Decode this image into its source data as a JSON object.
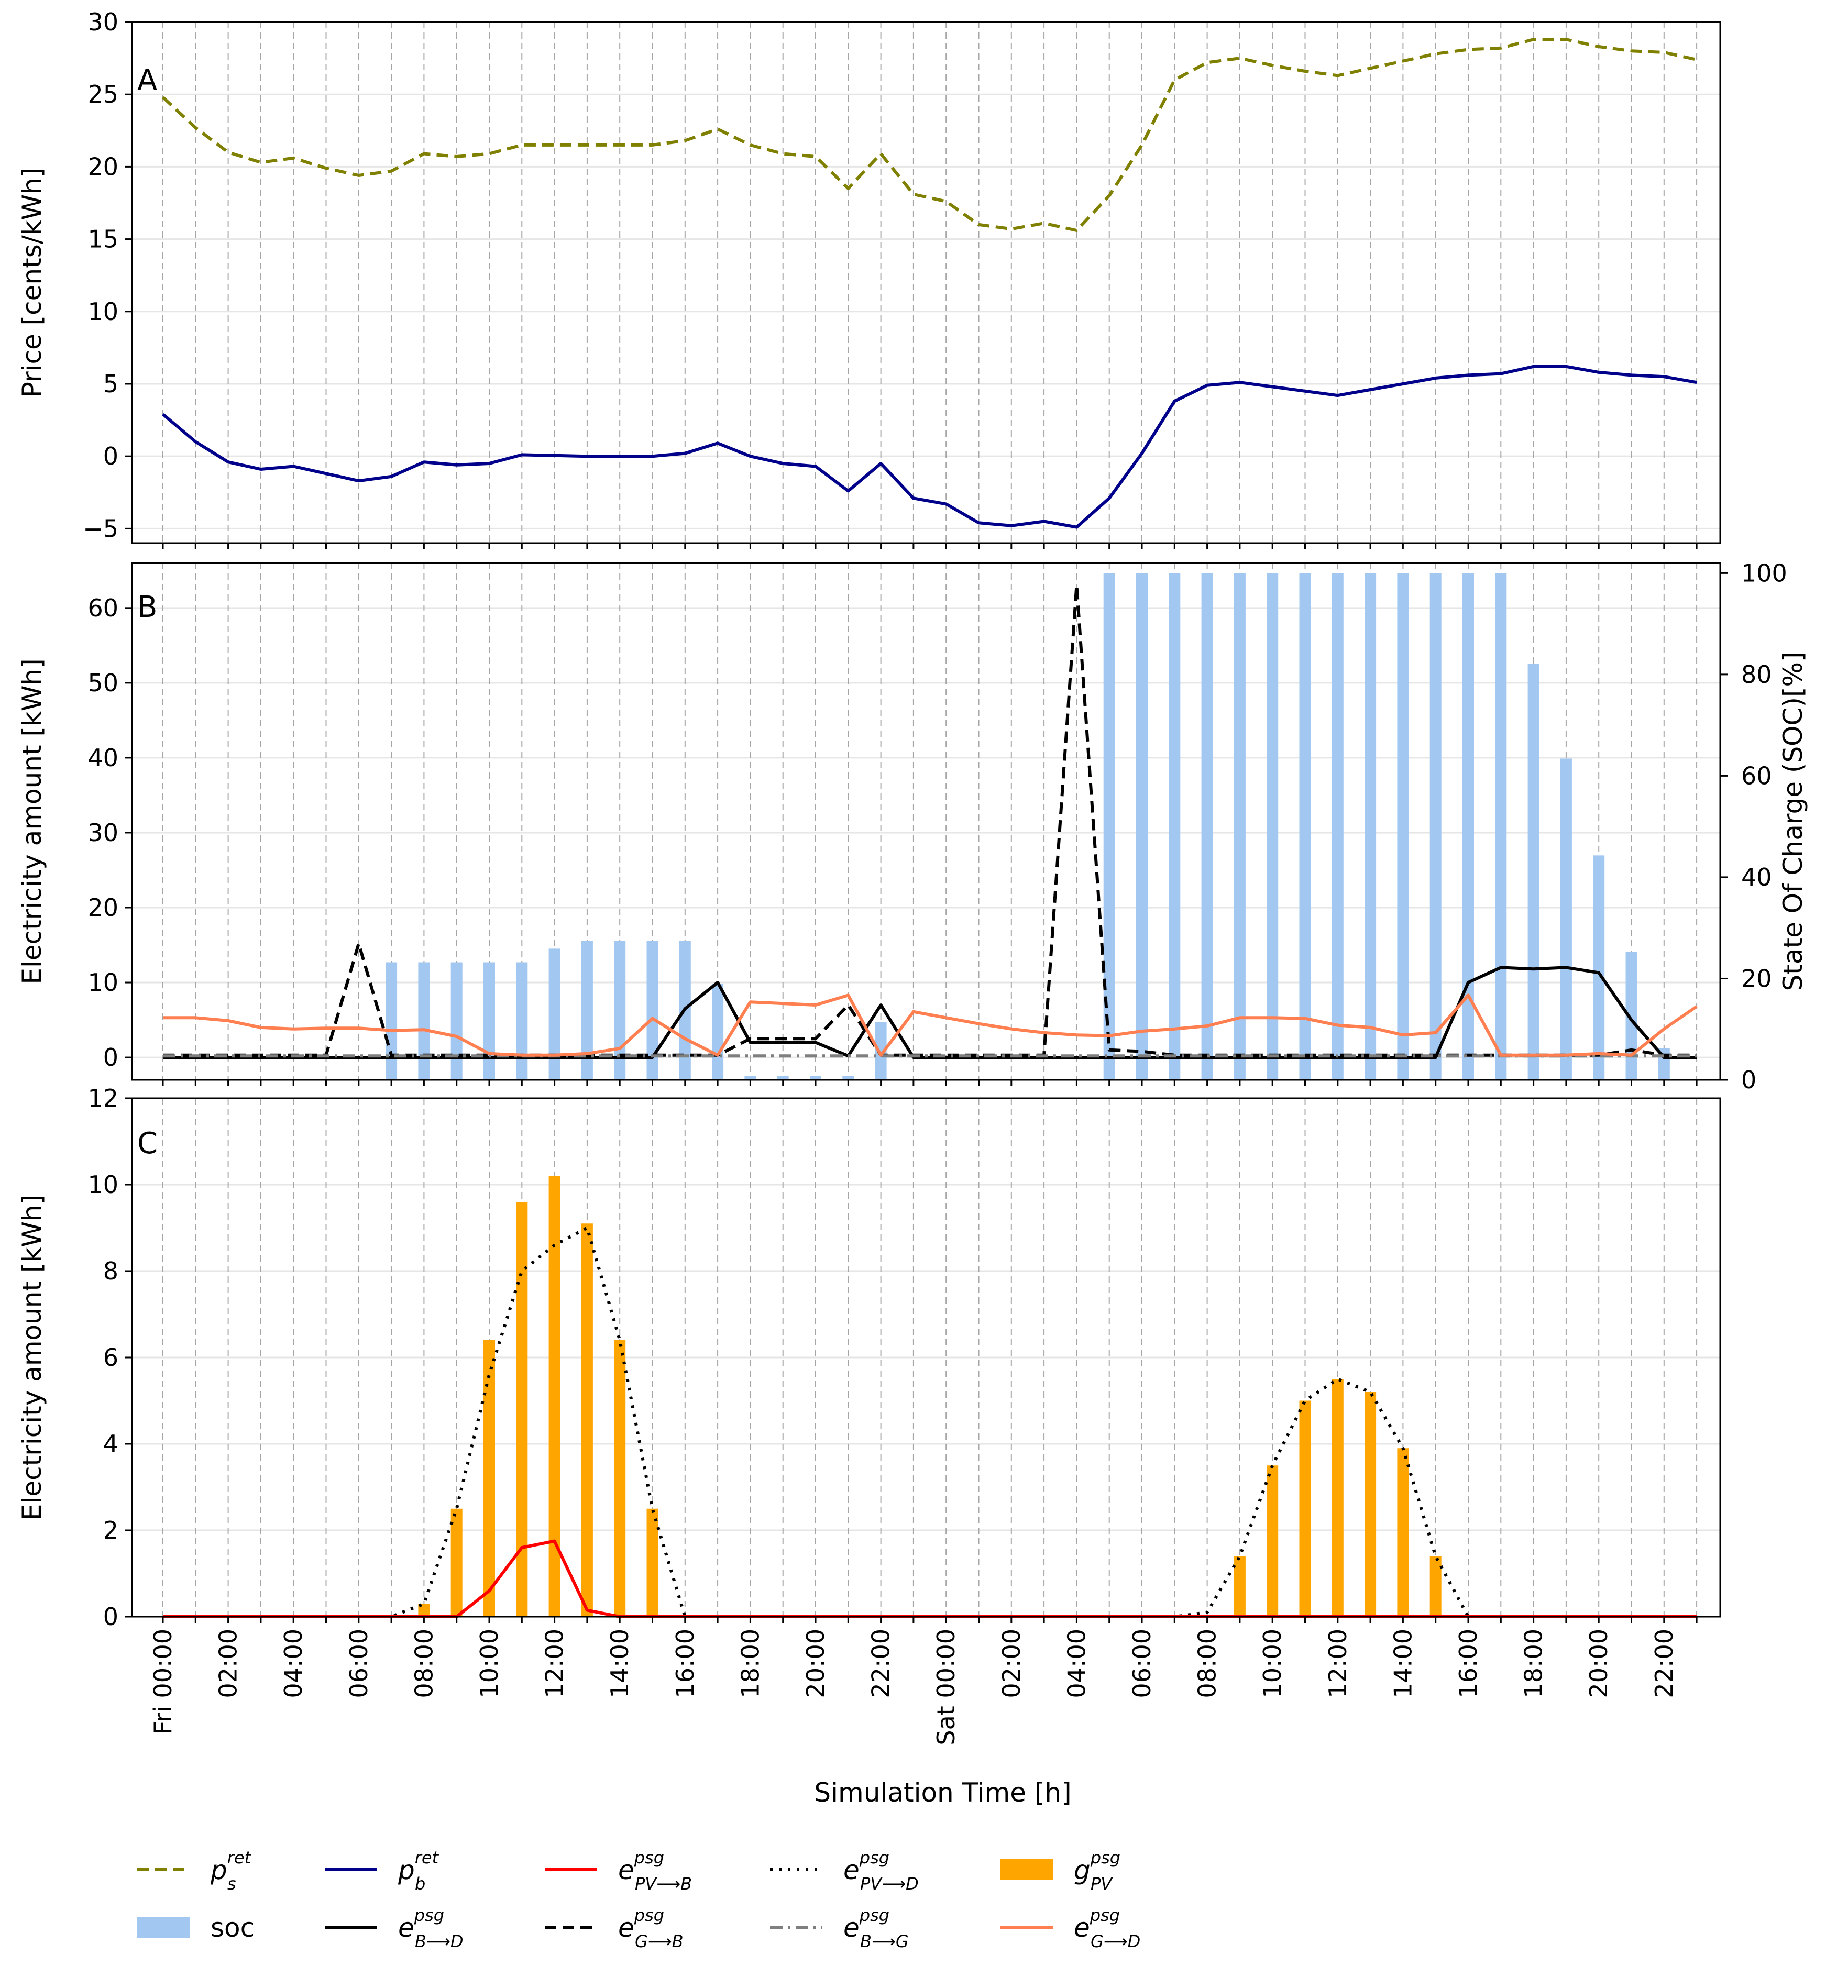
{
  "chart_data": [
    {
      "panel": "A",
      "type": "line",
      "ylabel": "Price [cents/kWh]",
      "ylim": [
        -6,
        30
      ],
      "yticks": [
        -5,
        0,
        5,
        10,
        15,
        20,
        25,
        30
      ],
      "series": [
        {
          "key": "p_s",
          "name": "p_s^ret",
          "color": "#808000",
          "dash": "dashed",
          "values": [
            24.8,
            22.7,
            21.0,
            20.3,
            20.6,
            19.9,
            19.4,
            19.7,
            20.9,
            20.7,
            20.9,
            21.5,
            21.5,
            21.5,
            21.5,
            21.5,
            21.8,
            22.6,
            21.5,
            20.9,
            20.7,
            18.5,
            20.9,
            18.1,
            17.6,
            16.0,
            15.7,
            16.1,
            15.6,
            18.0,
            21.5,
            26.0,
            27.2,
            27.5,
            27.0,
            26.6,
            26.3,
            26.8,
            27.3,
            27.8,
            28.1,
            28.2,
            28.8,
            28.8,
            28.3,
            28.0,
            27.9,
            27.4
          ]
        },
        {
          "key": "p_b",
          "name": "p_b^ret",
          "color": "#00008B",
          "dash": "solid",
          "values": [
            2.9,
            1.0,
            -0.4,
            -0.9,
            -0.7,
            -1.2,
            -1.7,
            -1.4,
            -0.4,
            -0.6,
            -0.5,
            0.1,
            0.05,
            0.0,
            0.0,
            0.0,
            0.2,
            0.9,
            0.0,
            -0.5,
            -0.7,
            -2.4,
            -0.5,
            -2.9,
            -3.3,
            -4.6,
            -4.8,
            -4.5,
            -4.9,
            -2.9,
            0.2,
            3.8,
            4.9,
            5.1,
            4.8,
            4.5,
            4.2,
            4.6,
            5.0,
            5.4,
            5.6,
            5.7,
            6.2,
            6.2,
            5.8,
            5.6,
            5.5,
            5.1
          ]
        }
      ]
    },
    {
      "panel": "B",
      "type": "bar+line",
      "ylabel": "Electricity amount [kWh]",
      "ylim": [
        -3,
        66
      ],
      "yticks": [
        0,
        10,
        20,
        30,
        40,
        50,
        60
      ],
      "y2label": "State Of Charge (SOC)[%]",
      "y2lim": [
        0,
        102
      ],
      "y2ticks": [
        0,
        20,
        40,
        60,
        80,
        100
      ],
      "soc": {
        "name": "soc",
        "color": "#A2C8F2",
        "values": [
          0,
          0,
          0,
          0,
          0,
          0,
          0,
          23.2,
          23.2,
          23.2,
          23.2,
          23.2,
          25.9,
          27.4,
          27.4,
          27.4,
          27.4,
          19.0,
          0.8,
          0.8,
          0.8,
          0.8,
          11.4,
          0,
          0,
          0,
          0,
          0,
          0,
          100,
          100,
          100,
          100,
          100,
          100,
          100,
          100,
          100,
          100,
          100,
          100,
          100,
          82.1,
          63.4,
          44.3,
          25.3,
          6.3,
          0
        ]
      },
      "series": [
        {
          "key": "e_bd",
          "name": "e_B->D",
          "color": "#000000",
          "dash": "solid",
          "values": [
            0,
            0,
            0,
            0,
            0,
            0,
            0,
            0,
            0,
            0,
            0,
            0,
            0,
            0,
            0,
            0,
            6.5,
            10.0,
            2.0,
            2.0,
            2.0,
            0.2,
            7.0,
            0,
            0,
            0,
            0,
            0,
            0,
            0,
            0,
            0,
            0,
            0,
            0,
            0,
            0,
            0,
            0,
            0,
            10.0,
            12.0,
            11.8,
            12.0,
            11.3,
            5.0,
            0,
            0
          ]
        },
        {
          "key": "e_gb",
          "name": "e_G->B",
          "color": "#000000",
          "dash": "dashed",
          "values": [
            0.3,
            0.3,
            0.3,
            0.3,
            0.3,
            0.3,
            15.2,
            0.3,
            0.3,
            0.3,
            0.3,
            0.3,
            0.3,
            0.3,
            0.3,
            0.3,
            0.3,
            0.3,
            2.5,
            2.5,
            2.5,
            7.0,
            0.3,
            0.3,
            0.3,
            0.3,
            0.3,
            0.3,
            63.0,
            1.0,
            0.8,
            0.3,
            0.3,
            0.3,
            0.3,
            0.3,
            0.3,
            0.3,
            0.3,
            0.3,
            0.3,
            0.3,
            0.3,
            0.3,
            0.3,
            1.0,
            0.3,
            0.3
          ]
        },
        {
          "key": "e_bg",
          "name": "e_B->G",
          "color": "#7F7F7F",
          "dash": "dashdot",
          "values": [
            0.2,
            0.2,
            0.2,
            0.2,
            0.2,
            0.2,
            0.2,
            0.2,
            0.2,
            0.2,
            0.2,
            0.2,
            0.2,
            0.2,
            0.2,
            0.2,
            0.2,
            0.2,
            0.2,
            0.2,
            0.2,
            0.2,
            0.2,
            0.2,
            0.2,
            0.2,
            0.2,
            0.2,
            0.2,
            0.2,
            0.2,
            0.2,
            0.2,
            0.2,
            0.2,
            0.2,
            0.2,
            0.2,
            0.2,
            0.2,
            0.2,
            0.2,
            0.2,
            0.2,
            0.2,
            0.2,
            0.2,
            0.2
          ]
        },
        {
          "key": "e_gd",
          "name": "e_G->D",
          "color": "#FF7F50",
          "dash": "solid",
          "values": [
            5.3,
            5.3,
            4.9,
            4.0,
            3.8,
            3.9,
            3.9,
            3.6,
            3.7,
            2.8,
            0.5,
            0.3,
            0.3,
            0.5,
            1.2,
            5.2,
            2.5,
            0.3,
            7.4,
            7.2,
            7.0,
            8.3,
            0.3,
            6.1,
            5.3,
            4.5,
            3.8,
            3.3,
            3.0,
            2.9,
            3.5,
            3.8,
            4.2,
            5.3,
            5.3,
            5.2,
            4.3,
            4.0,
            3.0,
            3.3,
            8.3,
            0.3,
            0.3,
            0.3,
            0.5,
            0.3,
            3.8,
            6.8
          ]
        }
      ]
    },
    {
      "panel": "C",
      "type": "bar+line",
      "ylabel": "Electricity amount [kWh]",
      "ylim": [
        0,
        12
      ],
      "yticks": [
        0,
        2,
        4,
        6,
        8,
        10,
        12
      ],
      "bars": {
        "name": "g_PV",
        "color": "#FFA500",
        "values": [
          0,
          0,
          0,
          0,
          0,
          0,
          0,
          0,
          0.3,
          2.5,
          6.4,
          9.6,
          10.2,
          9.1,
          6.4,
          2.5,
          0,
          0,
          0,
          0,
          0,
          0,
          0,
          0,
          0,
          0,
          0,
          0,
          0,
          0,
          0,
          0,
          0,
          1.4,
          3.5,
          5.0,
          5.5,
          5.2,
          3.9,
          1.4,
          0,
          0,
          0,
          0,
          0,
          0,
          0,
          0
        ]
      },
      "series": [
        {
          "key": "e_pvd",
          "name": "e_PV->D",
          "color": "#000000",
          "dash": "dotted",
          "values": [
            0,
            0,
            0,
            0,
            0,
            0,
            0,
            0,
            0.3,
            2.5,
            5.6,
            8.0,
            8.6,
            9.0,
            6.4,
            2.5,
            0,
            0,
            0,
            0,
            0,
            0,
            0,
            0,
            0,
            0,
            0,
            0,
            0,
            0,
            0,
            0,
            0.1,
            1.4,
            3.5,
            5.0,
            5.5,
            5.2,
            3.9,
            1.4,
            0,
            0,
            0,
            0,
            0,
            0,
            0,
            0
          ]
        },
        {
          "key": "e_pvb",
          "name": "e_PV->B",
          "color": "#FF0000",
          "dash": "solid",
          "values": [
            0,
            0,
            0,
            0,
            0,
            0,
            0,
            0,
            0,
            0,
            0.6,
            1.6,
            1.75,
            0.15,
            0,
            0,
            0,
            0,
            0,
            0,
            0,
            0,
            0,
            0,
            0,
            0,
            0,
            0,
            0,
            0,
            0,
            0,
            0,
            0,
            0,
            0,
            0,
            0,
            0,
            0,
            0,
            0,
            0,
            0,
            0,
            0,
            0,
            0
          ]
        }
      ]
    }
  ],
  "x_axis": {
    "label": "Simulation Time [h]",
    "hours": 48,
    "ticks": [
      {
        "hour": 0,
        "label": "Fri 00:00"
      },
      {
        "hour": 2,
        "label": "02:00"
      },
      {
        "hour": 4,
        "label": "04:00"
      },
      {
        "hour": 6,
        "label": "06:00"
      },
      {
        "hour": 8,
        "label": "08:00"
      },
      {
        "hour": 10,
        "label": "10:00"
      },
      {
        "hour": 12,
        "label": "12:00"
      },
      {
        "hour": 14,
        "label": "14:00"
      },
      {
        "hour": 16,
        "label": "16:00"
      },
      {
        "hour": 18,
        "label": "18:00"
      },
      {
        "hour": 20,
        "label": "20:00"
      },
      {
        "hour": 22,
        "label": "22:00"
      },
      {
        "hour": 24,
        "label": "Sat 00:00"
      },
      {
        "hour": 26,
        "label": "02:00"
      },
      {
        "hour": 28,
        "label": "04:00"
      },
      {
        "hour": 30,
        "label": "06:00"
      },
      {
        "hour": 32,
        "label": "08:00"
      },
      {
        "hour": 34,
        "label": "10:00"
      },
      {
        "hour": 36,
        "label": "12:00"
      },
      {
        "hour": 38,
        "label": "14:00"
      },
      {
        "hour": 40,
        "label": "16:00"
      },
      {
        "hour": 42,
        "label": "18:00"
      },
      {
        "hour": 44,
        "label": "20:00"
      },
      {
        "hour": 46,
        "label": "22:00"
      }
    ]
  },
  "legend": [
    {
      "type": "line",
      "dash": "dashed",
      "color": "#808000",
      "base": "p",
      "sub": "s",
      "sup": "ret"
    },
    {
      "type": "line",
      "dash": "solid",
      "color": "#00008B",
      "base": "p",
      "sub": "b",
      "sup": "ret"
    },
    {
      "type": "line",
      "dash": "solid",
      "color": "#FF0000",
      "base": "e",
      "sub": "PV⟶B",
      "sup": "psg"
    },
    {
      "type": "line",
      "dash": "dotted",
      "color": "#000000",
      "base": "e",
      "sub": "PV⟶D",
      "sup": "psg"
    },
    {
      "type": "bar",
      "color": "#FFA500",
      "base": "g",
      "sub": "PV",
      "sup": "psg"
    },
    {
      "type": "bar",
      "color": "#A2C8F2",
      "text": "soc"
    },
    {
      "type": "line",
      "dash": "solid",
      "color": "#000000",
      "base": "e",
      "sub": "B⟶D",
      "sup": "psg"
    },
    {
      "type": "line",
      "dash": "dashed",
      "color": "#000000",
      "base": "e",
      "sub": "G⟶B",
      "sup": "psg"
    },
    {
      "type": "line",
      "dash": "dashdot",
      "color": "#7F7F7F",
      "base": "e",
      "sub": "B⟶G",
      "sup": "psg"
    },
    {
      "type": "line",
      "dash": "solid",
      "color": "#FF7F50",
      "base": "e",
      "sub": "G⟶D",
      "sup": "psg"
    }
  ]
}
